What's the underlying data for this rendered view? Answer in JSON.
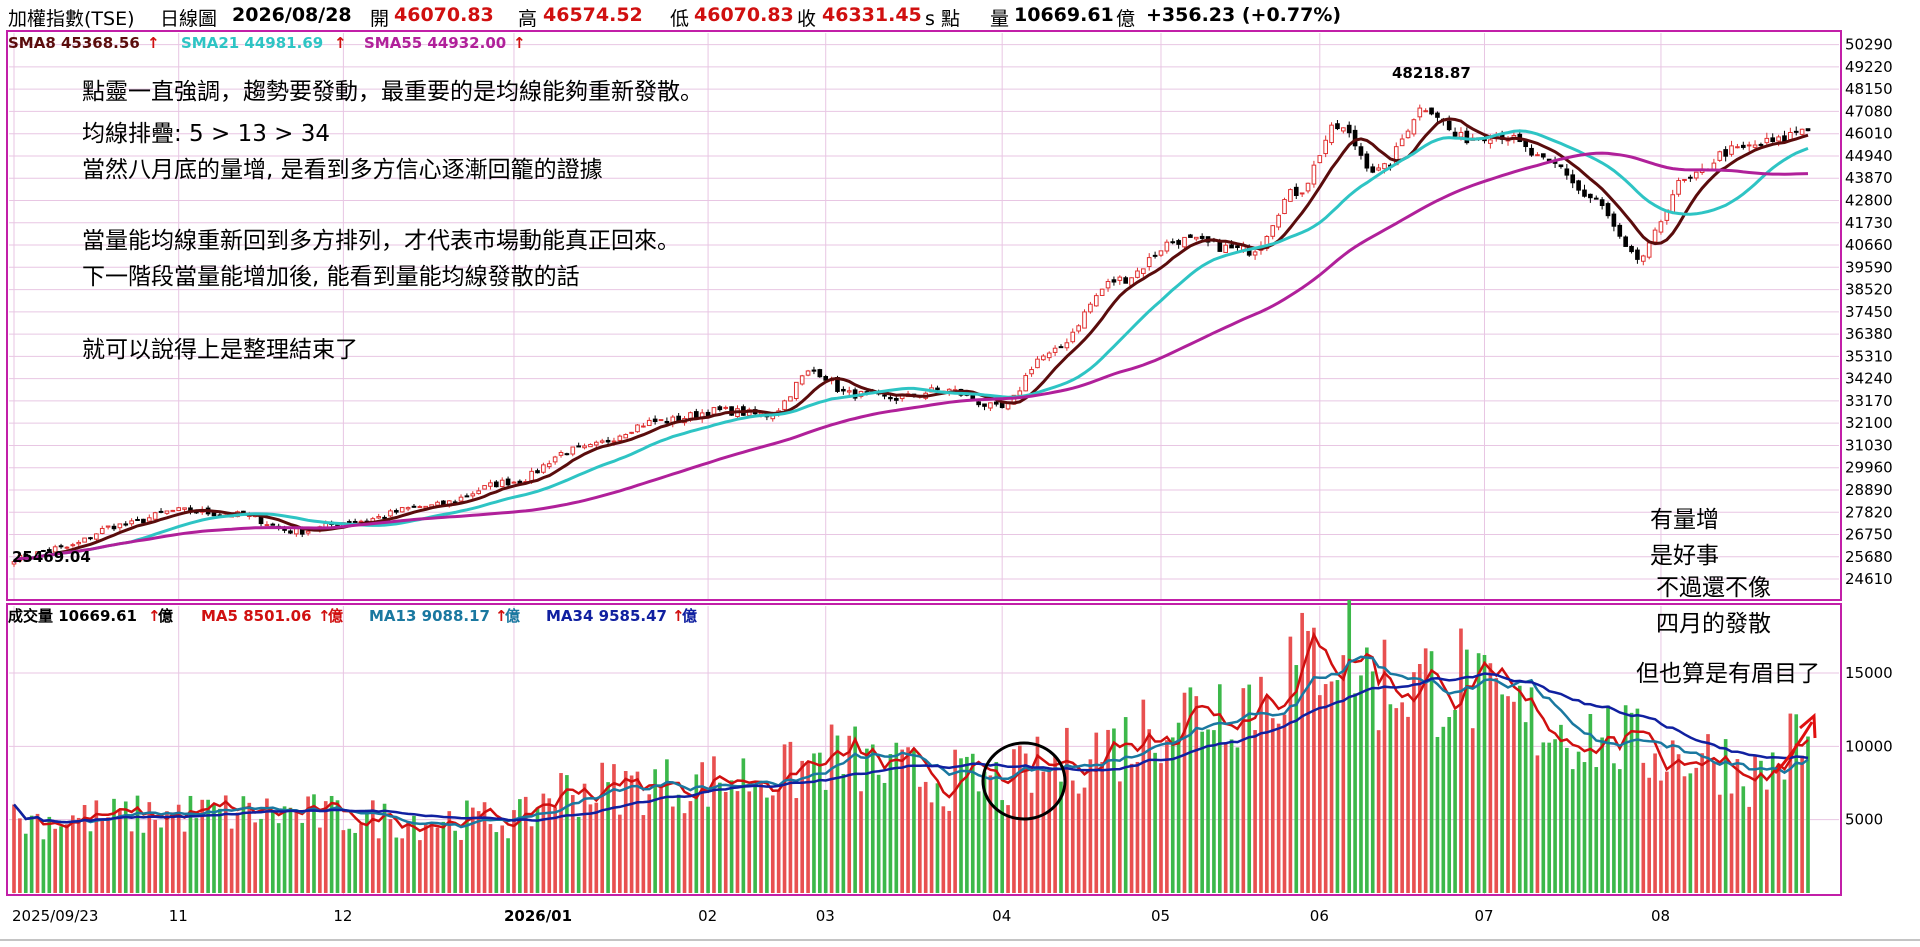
{
  "header": {
    "name": "加權指數(TSE)",
    "period": "日線圖",
    "date": "2026/08/28",
    "open_label": "開",
    "open": "46070.83",
    "high_label": "高",
    "high": "46574.52",
    "low_label": "低",
    "low": "46070.83",
    "close_label": "收",
    "close": "46331.45",
    "unit": "s 點",
    "vol_label": "量",
    "vol": "10669.61",
    "vol_unit": "億",
    "change": "+356.23 (+0.77%)"
  },
  "legend_price": [
    {
      "text": "SMA8 45368.56",
      "color": "#5a0c0c"
    },
    {
      "text": "SMA21 44981.69",
      "color": "#2ec4c4"
    },
    {
      "text": "SMA55 44932.00",
      "color": "#b0209a"
    }
  ],
  "legend_volume": [
    {
      "text": "成交量 10669.61",
      "unit": "億",
      "color": "#000000"
    },
    {
      "text": "MA5 8501.06",
      "unit": "億",
      "color": "#d01010"
    },
    {
      "text": "MA13 9088.17",
      "unit": "億",
      "color": "#1a78a0"
    },
    {
      "text": "MA34 9585.47",
      "unit": "億",
      "color": "#1020a0"
    }
  ],
  "annotations": {
    "line1": "點靈一直強調，趨勢要發動，最重要的是均線能夠重新發散。",
    "line2": "均線排疊: 5 > 13 > 34",
    "line3": "當然八月底的量增, 是看到多方信心逐漸回籠的證據",
    "line4": "當量能均線重新回到多方排列，才代表市場動能真正回來。",
    "line5": "下一階段當量能增加後, 能看到量能均線發散的話",
    "line6": "就可以說得上是整理結束了",
    "note1": "有量增",
    "note2": "是好事",
    "note3": "不過還不像",
    "note4": "四月的發散",
    "note5": "但也算是有眉目了"
  },
  "chart_data": [
    {
      "type": "candlestick",
      "title": "加權指數(TSE) 日線圖",
      "y_ticks": [
        50290,
        49220,
        48150,
        47080,
        46010,
        44940,
        43870,
        42800,
        41730,
        40660,
        39590,
        38520,
        37450,
        36380,
        35310,
        34240,
        33170,
        32100,
        31030,
        29960,
        28890,
        27820,
        26750,
        25680,
        24610
      ],
      "ylim": [
        23700,
        50800
      ],
      "x_labels": [
        "2025/09/23",
        "11",
        "12",
        "2026/01",
        "02",
        "03",
        "04",
        "05",
        "06",
        "07",
        "08"
      ],
      "x_label_days": [
        0,
        28,
        56,
        85,
        118,
        138,
        168,
        195,
        222,
        250,
        280
      ],
      "n_days": 306,
      "high_label": "48218.87",
      "low_label": "25469.04",
      "price_keypoints": [
        [
          0,
          25600
        ],
        [
          8,
          26100
        ],
        [
          18,
          27200
        ],
        [
          28,
          27900
        ],
        [
          38,
          27700
        ],
        [
          48,
          26900
        ],
        [
          58,
          27400
        ],
        [
          70,
          28100
        ],
        [
          85,
          29300
        ],
        [
          95,
          30800
        ],
        [
          110,
          32200
        ],
        [
          120,
          32700
        ],
        [
          128,
          32500
        ],
        [
          136,
          34600
        ],
        [
          142,
          33500
        ],
        [
          150,
          33300
        ],
        [
          158,
          33700
        ],
        [
          168,
          32800
        ],
        [
          175,
          35300
        ],
        [
          188,
          39000
        ],
        [
          198,
          40900
        ],
        [
          210,
          40400
        ],
        [
          218,
          43200
        ],
        [
          225,
          46300
        ],
        [
          232,
          44200
        ],
        [
          240,
          47300
        ],
        [
          246,
          45800
        ],
        [
          252,
          46000
        ],
        [
          262,
          44500
        ],
        [
          268,
          42900
        ],
        [
          276,
          40000
        ],
        [
          284,
          43700
        ],
        [
          292,
          45200
        ],
        [
          299,
          45600
        ],
        [
          305,
          46330
        ]
      ],
      "series": [
        {
          "name": "SMA8",
          "value": "45368.56",
          "color": "#5a0c0c"
        },
        {
          "name": "SMA21",
          "value": "44981.69",
          "color": "#2ec4c4"
        },
        {
          "name": "SMA55",
          "value": "44932.00",
          "color": "#b0209a"
        }
      ]
    },
    {
      "type": "bar",
      "title": "成交量",
      "y_ticks": [
        15000,
        10000,
        5000
      ],
      "ylim": [
        0,
        19500
      ],
      "volume_keypoints": [
        [
          0,
          5000
        ],
        [
          40,
          5500
        ],
        [
          70,
          5000
        ],
        [
          86,
          5000
        ],
        [
          92,
          7000
        ],
        [
          110,
          7400
        ],
        [
          130,
          8000
        ],
        [
          140,
          9300
        ],
        [
          150,
          8200
        ],
        [
          160,
          7700
        ],
        [
          168,
          7600
        ],
        [
          176,
          8600
        ],
        [
          186,
          10000
        ],
        [
          198,
          12400
        ],
        [
          210,
          13500
        ],
        [
          218,
          15300
        ],
        [
          225,
          17400
        ],
        [
          232,
          14500
        ],
        [
          240,
          14300
        ],
        [
          246,
          14700
        ],
        [
          252,
          12300
        ],
        [
          260,
          11600
        ],
        [
          268,
          10800
        ],
        [
          280,
          9600
        ],
        [
          290,
          9200
        ],
        [
          296,
          8000
        ],
        [
          305,
          10669
        ]
      ],
      "series": [
        {
          "name": "MA5",
          "value": "8501.06",
          "color": "#d01010"
        },
        {
          "name": "MA13",
          "value": "9088.17",
          "color": "#1a78a0"
        },
        {
          "name": "MA34",
          "value": "9585.47",
          "color": "#1020a0"
        }
      ]
    }
  ]
}
